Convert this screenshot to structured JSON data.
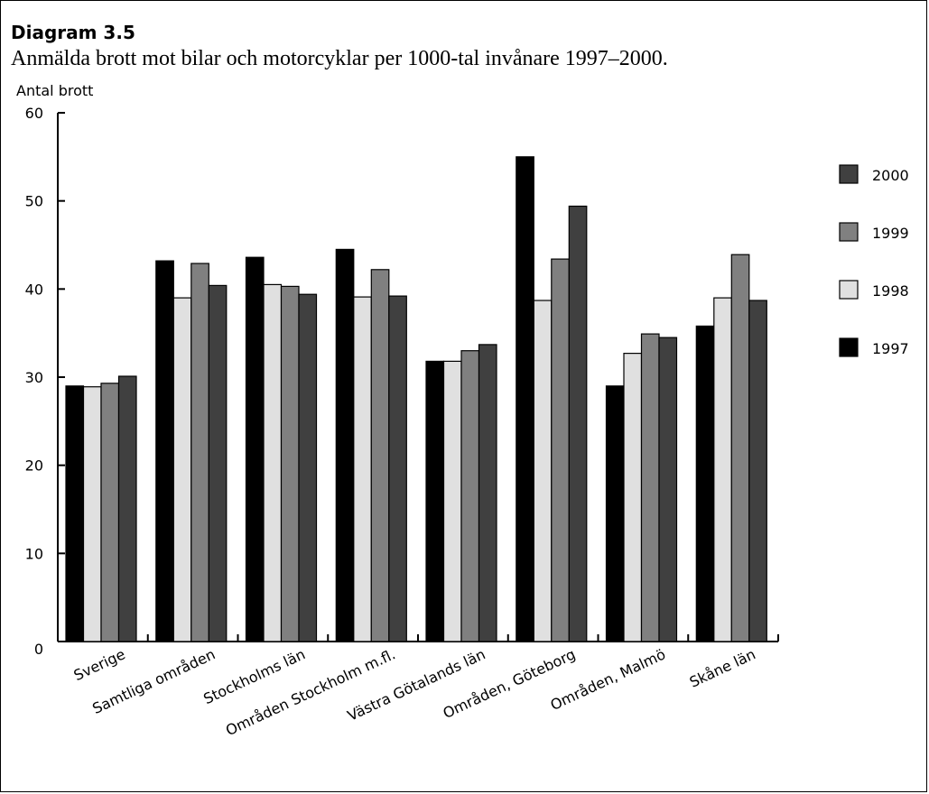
{
  "heading": "Diagram 3.5",
  "subtitle": "Anmälda brott mot bilar och motorcyklar per 1000-tal invånare 1997–2000.",
  "chart_data": {
    "type": "bar",
    "ylabel": "Antal brott",
    "xlabel": "",
    "ylim": [
      0,
      60
    ],
    "yticks": [
      "0",
      "10",
      "20",
      "30",
      "40",
      "50",
      "60"
    ],
    "grid": false,
    "legend_position": "right",
    "categories": [
      "Sverige",
      "Samtliga områden",
      "Stockholms län",
      "Områden Stockholm m.fl.",
      "Västra Götalands län",
      "Områden, Göteborg",
      "Områden, Malmö",
      "Skåne län"
    ],
    "series": [
      {
        "name": "1997",
        "color": "#000000",
        "values": [
          29.0,
          43.2,
          43.6,
          44.5,
          31.8,
          55.0,
          29.0,
          35.8
        ]
      },
      {
        "name": "1998",
        "color": "#e0e0e0",
        "values": [
          28.9,
          39.0,
          40.5,
          39.1,
          31.8,
          38.7,
          32.7,
          39.0
        ]
      },
      {
        "name": "1999",
        "color": "#808080",
        "values": [
          29.3,
          42.9,
          40.3,
          42.2,
          33.0,
          43.4,
          34.9,
          43.9
        ]
      },
      {
        "name": "2000",
        "color": "#404040",
        "values": [
          30.1,
          40.4,
          39.4,
          39.2,
          33.7,
          49.4,
          34.5,
          38.7
        ]
      }
    ],
    "legend_order": [
      "2000",
      "1999",
      "1998",
      "1997"
    ]
  }
}
